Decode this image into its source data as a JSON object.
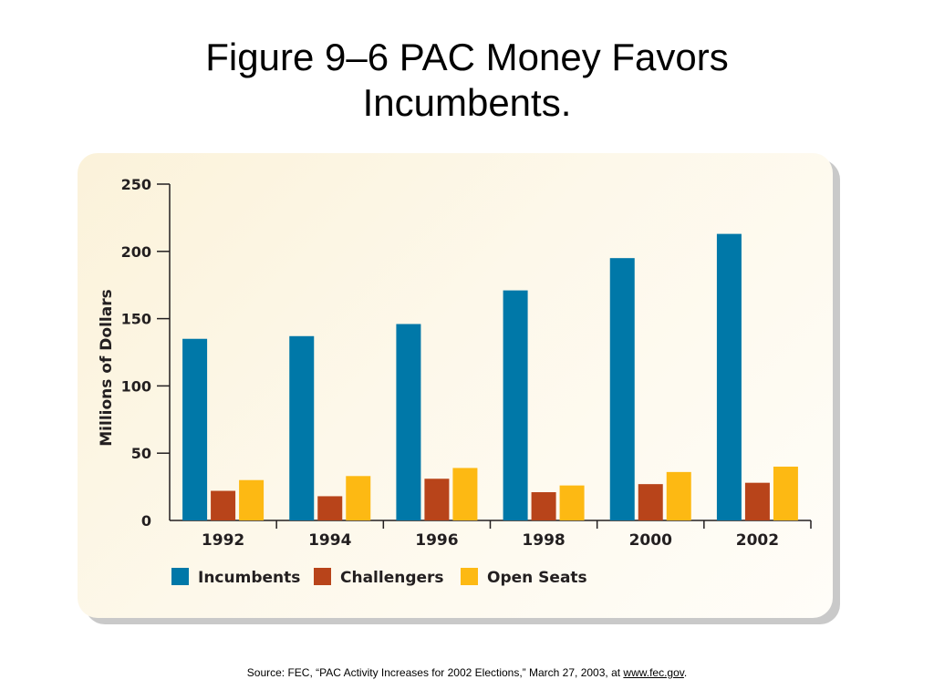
{
  "title": {
    "line1": "Figure 9–6 PAC Money Favors",
    "line2": "Incumbents."
  },
  "source": {
    "prefix": "Source: FEC, “PAC Activity Increases for 2002 Elections,” March 27, 2003, at ",
    "link_text": "www.fec.gov",
    "suffix": "."
  },
  "chart_data": {
    "type": "bar",
    "categories": [
      "1992",
      "1994",
      "1996",
      "1998",
      "2000",
      "2002"
    ],
    "series": [
      {
        "name": "Incumbents",
        "color": "#0078a8",
        "values": [
          135,
          137,
          146,
          171,
          195,
          213
        ]
      },
      {
        "name": "Challengers",
        "color": "#b8441a",
        "values": [
          22,
          18,
          31,
          21,
          27,
          28
        ]
      },
      {
        "name": "Open Seats",
        "color": "#fdb913",
        "values": [
          30,
          33,
          39,
          26,
          36,
          40
        ]
      }
    ],
    "ylabel": "Millions of Dollars",
    "xlabel": "",
    "ylim": [
      0,
      250
    ],
    "yticks": [
      0,
      50,
      100,
      150,
      200,
      250
    ],
    "grid": false,
    "legend": "bottom-left"
  }
}
